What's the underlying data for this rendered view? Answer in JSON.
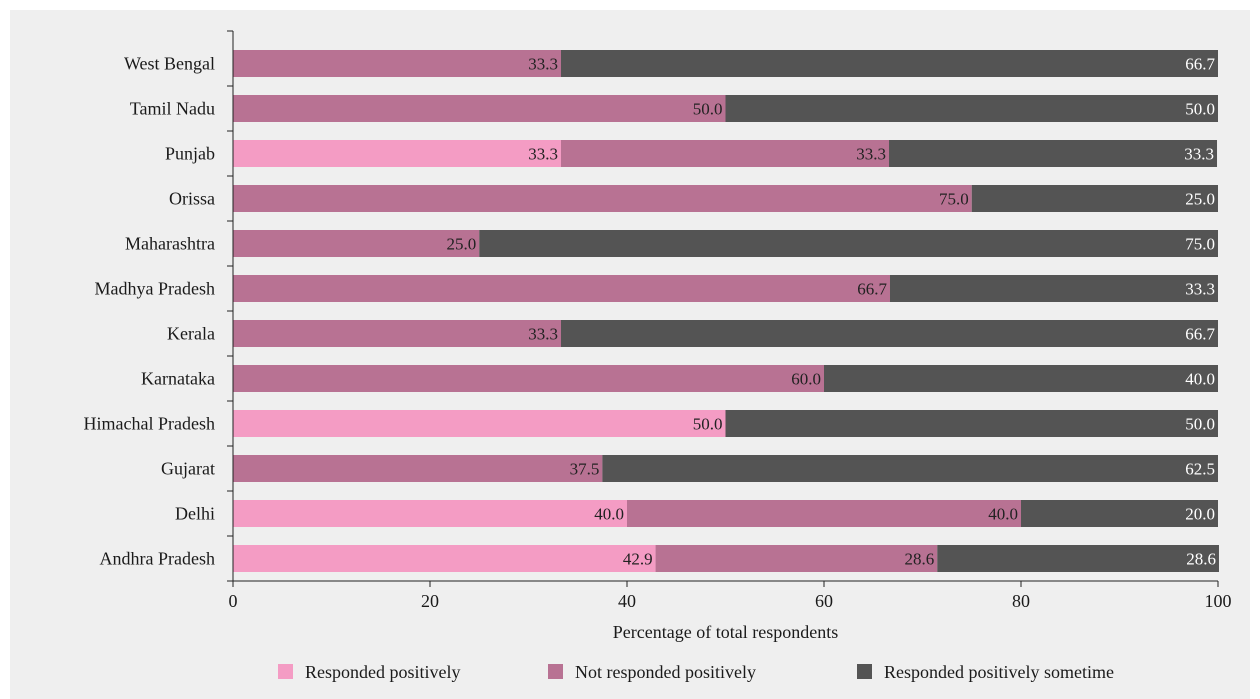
{
  "chart_data": {
    "type": "bar",
    "orientation": "horizontal",
    "stacked": true,
    "categories": [
      "West Bengal",
      "Tamil Nadu",
      "Punjab",
      "Orissa",
      "Maharashtra",
      "Madhya Pradesh",
      "Kerala",
      "Karnataka",
      "Himachal Pradesh",
      "Gujarat",
      "Delhi",
      "Andhra Pradesh"
    ],
    "series": [
      {
        "name": "Responded positively",
        "color": "#f49cc4",
        "values": [
          0,
          0,
          33.3,
          0,
          0,
          0,
          0,
          0,
          50.0,
          0,
          40.0,
          42.9
        ]
      },
      {
        "name": "Not responded positively",
        "color": "#b87293",
        "values": [
          33.3,
          50.0,
          33.3,
          75.0,
          25.0,
          66.7,
          33.3,
          60.0,
          0,
          37.5,
          40.0,
          28.6
        ]
      },
      {
        "name": "Responded positively sometime",
        "color": "#545454",
        "values": [
          66.7,
          50.0,
          33.3,
          25.0,
          75.0,
          33.3,
          66.7,
          40.0,
          50.0,
          62.5,
          20.0,
          28.6
        ]
      }
    ],
    "xlabel": "Percentage of total respondents",
    "ylabel": "",
    "xlim": [
      0,
      100
    ],
    "xticks": [
      "0",
      "20",
      "40",
      "60",
      "80",
      "100"
    ],
    "grid": false,
    "legend_position": "bottom"
  }
}
